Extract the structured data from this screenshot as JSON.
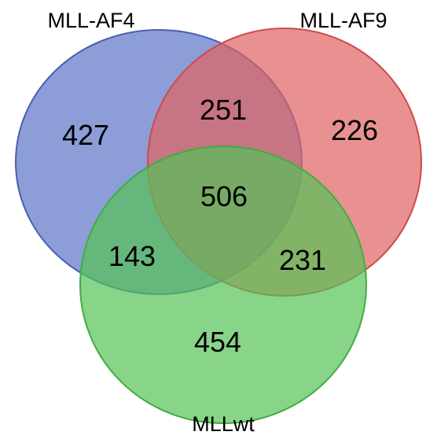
{
  "sets": [
    {
      "id": "af4",
      "label": "MLL-AF4",
      "color": "#5b74c8",
      "stroke": "#4a5fae"
    },
    {
      "id": "af9",
      "label": "MLL-AF9",
      "color": "#e06262",
      "stroke": "#cf4a4a"
    },
    {
      "id": "wt",
      "label": "MLLwt",
      "color": "#55c255",
      "stroke": "#3fae3f"
    }
  ],
  "regions": {
    "af4_only": "427",
    "af9_only": "226",
    "wt_only": "454",
    "af4_af9": "251",
    "af4_wt": "143",
    "af9_wt": "231",
    "all": "506"
  }
}
